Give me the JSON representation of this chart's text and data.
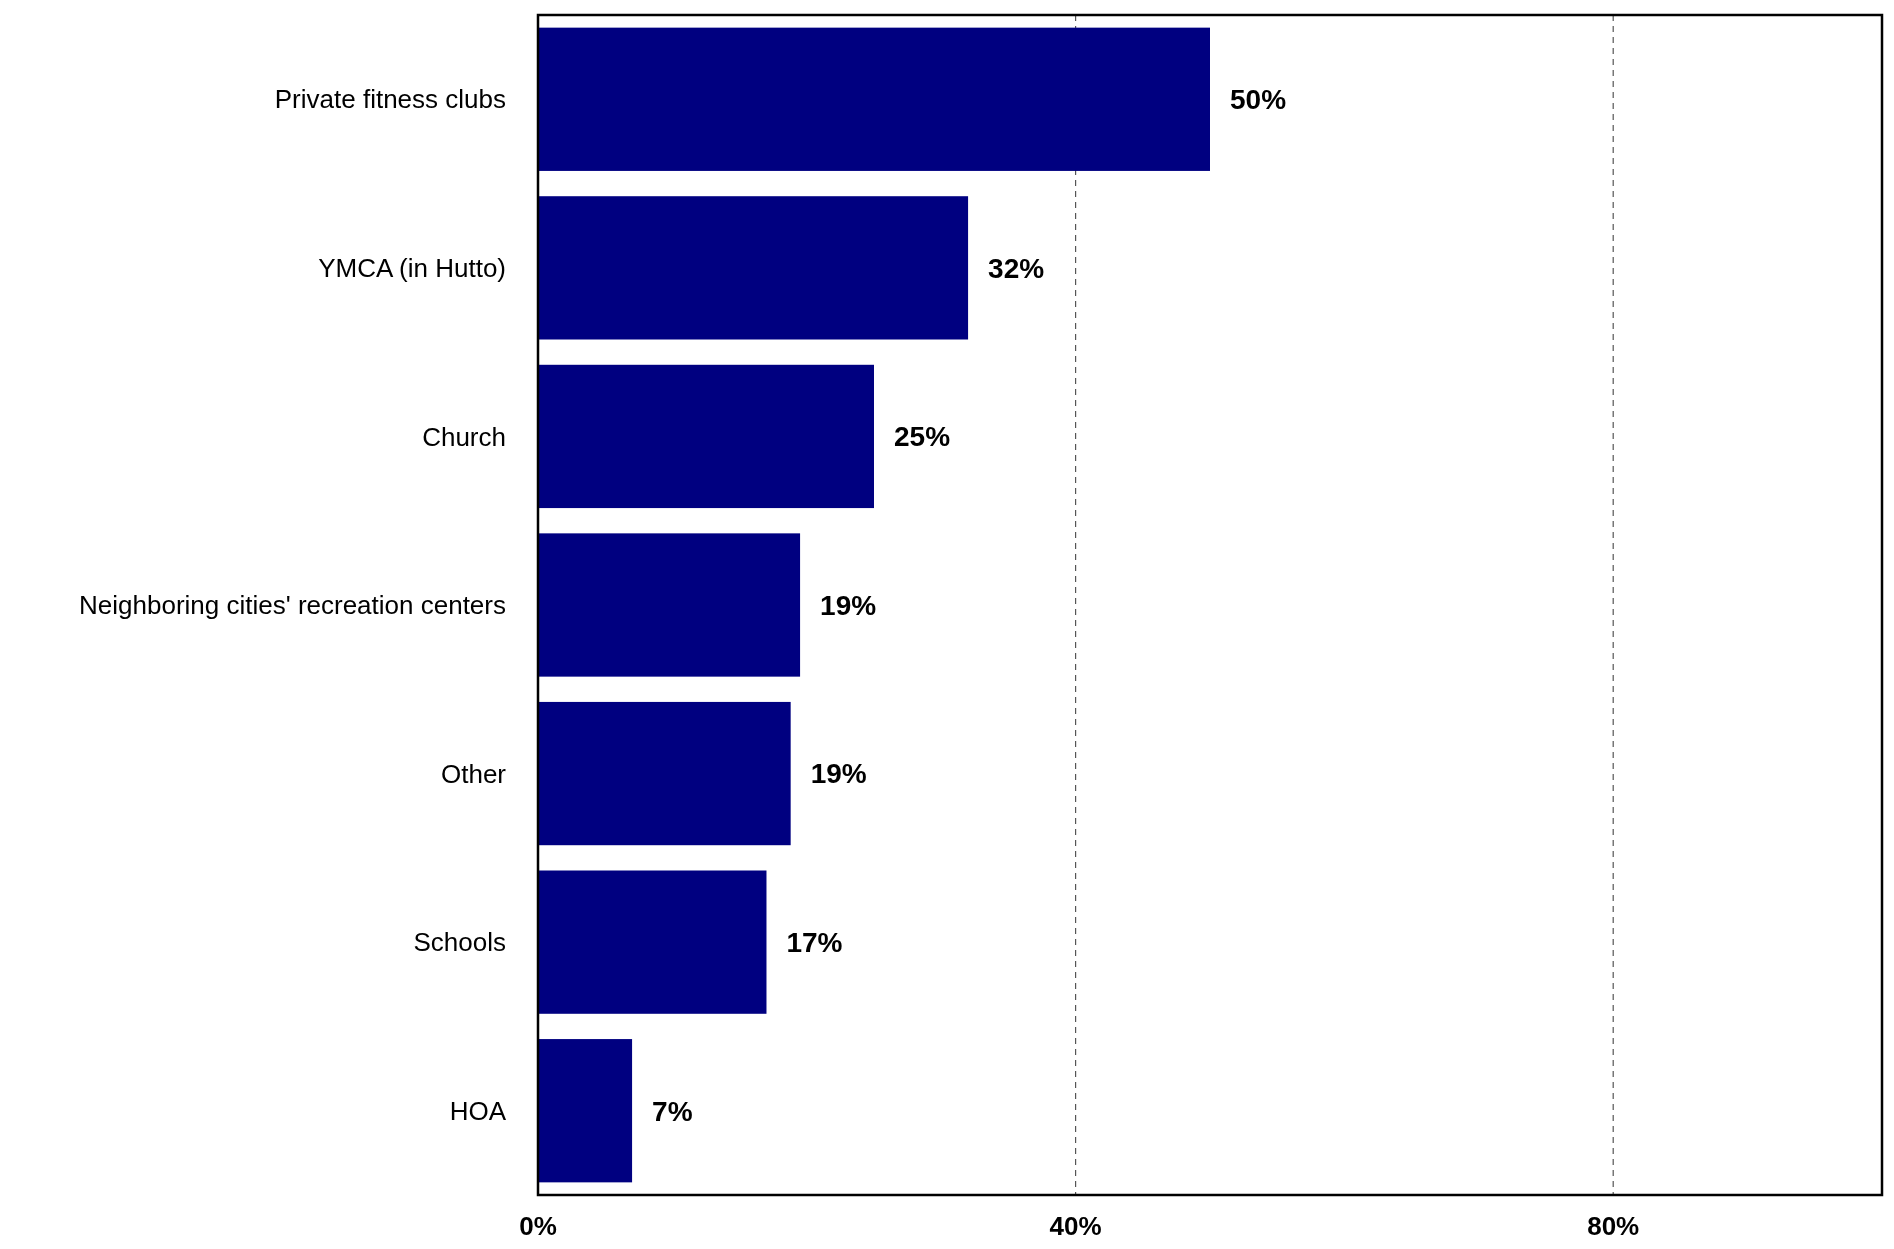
{
  "chart_data": {
    "type": "bar",
    "orientation": "horizontal",
    "categories": [
      "Private fitness clubs",
      "YMCA (in Hutto)",
      "Church",
      "Neighboring cities' recreation centers",
      "Other",
      "Schools",
      "HOA"
    ],
    "values": [
      50,
      32,
      25,
      19.5,
      18.8,
      17,
      7
    ],
    "value_labels": [
      "50%",
      "32%",
      "25%",
      "19%",
      "19%",
      "17%",
      "7%"
    ],
    "color": "#000080",
    "xlim": [
      0,
      100
    ],
    "xticks": [
      {
        "value": 0,
        "label": "0%"
      },
      {
        "value": 40,
        "label": "40%"
      },
      {
        "value": 80,
        "label": "80%"
      }
    ],
    "grid": "x"
  }
}
